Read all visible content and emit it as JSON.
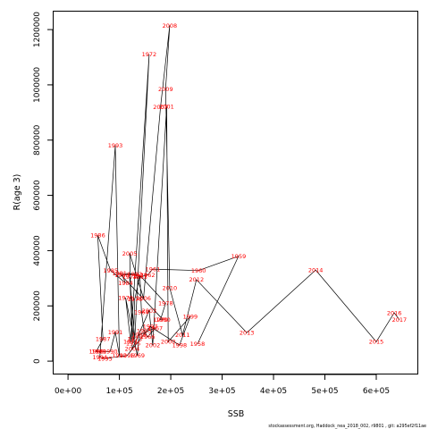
{
  "chart_data": {
    "type": "scatter",
    "xlabel": "SSB",
    "ylabel": "R(age 3)",
    "xlim": [
      -28000,
      680000
    ],
    "ylim": [
      -45000,
      1265000
    ],
    "xticks": [
      0,
      100000,
      200000,
      300000,
      400000,
      500000,
      600000
    ],
    "xtick_labels": [
      "0e+00",
      "1e+05",
      "2e+05",
      "3e+05",
      "4e+05",
      "5e+05",
      "6e+05"
    ],
    "yticks": [
      0,
      200000,
      400000,
      600000,
      800000,
      1000000,
      1200000
    ],
    "ytick_labels": [
      "0",
      "200000",
      "400000",
      "600000",
      "800000",
      "1000000",
      "1200000"
    ],
    "line_color": "#000000",
    "label_color": "#ff0000",
    "points": [
      {
        "year": "1958",
        "x": 252000,
        "y": 62000
      },
      {
        "year": "1959",
        "x": 332000,
        "y": 380000
      },
      {
        "year": "1960",
        "x": 254000,
        "y": 328000
      },
      {
        "year": "1961",
        "x": 165000,
        "y": 333000
      },
      {
        "year": "1962",
        "x": 155000,
        "y": 312000
      },
      {
        "year": "1963",
        "x": 140000,
        "y": 305000
      },
      {
        "year": "1964",
        "x": 143000,
        "y": 178000
      },
      {
        "year": "1965",
        "x": 148000,
        "y": 110000
      },
      {
        "year": "1966",
        "x": 155000,
        "y": 88000
      },
      {
        "year": "1967",
        "x": 170000,
        "y": 120000
      },
      {
        "year": "1968",
        "x": 138000,
        "y": 95000
      },
      {
        "year": "1969",
        "x": 135000,
        "y": 20000
      },
      {
        "year": "1970",
        "x": 112000,
        "y": 230000
      },
      {
        "year": "1971",
        "x": 122000,
        "y": 70000
      },
      {
        "year": "1972",
        "x": 158000,
        "y": 1110000
      },
      {
        "year": "1973",
        "x": 130000,
        "y": 80000
      },
      {
        "year": "1974",
        "x": 120000,
        "y": 305000
      },
      {
        "year": "1975",
        "x": 127000,
        "y": 65000
      },
      {
        "year": "1976",
        "x": 130000,
        "y": 225000
      },
      {
        "year": "1977",
        "x": 140000,
        "y": 310000
      },
      {
        "year": "1978",
        "x": 190000,
        "y": 210000
      },
      {
        "year": "1979",
        "x": 180000,
        "y": 150000
      },
      {
        "year": "1980",
        "x": 185000,
        "y": 150000
      },
      {
        "year": "1981",
        "x": 100000,
        "y": 318000
      },
      {
        "year": "1982",
        "x": 130000,
        "y": 315000
      },
      {
        "year": "1983",
        "x": 105000,
        "y": 312000
      },
      {
        "year": "1984",
        "x": 112000,
        "y": 283000
      },
      {
        "year": "1985",
        "x": 83000,
        "y": 328000
      },
      {
        "year": "1986",
        "x": 58000,
        "y": 455000
      },
      {
        "year": "1987",
        "x": 68000,
        "y": 80000
      },
      {
        "year": "1988",
        "x": 55000,
        "y": 35000
      },
      {
        "year": "1989",
        "x": 60000,
        "y": 35000
      },
      {
        "year": "1990",
        "x": 82000,
        "y": 35000
      },
      {
        "year": "1991",
        "x": 92000,
        "y": 105000
      },
      {
        "year": "1992",
        "x": 100000,
        "y": 20000
      },
      {
        "year": "1993",
        "x": 92000,
        "y": 780000
      },
      {
        "year": "1994",
        "x": 62000,
        "y": 15000
      },
      {
        "year": "1995",
        "x": 72000,
        "y": 10000
      },
      {
        "year": "1996",
        "x": 115000,
        "y": 20000
      },
      {
        "year": "1997",
        "x": 160000,
        "y": 125000
      },
      {
        "year": "1998",
        "x": 217000,
        "y": 58000
      },
      {
        "year": "1999",
        "x": 238000,
        "y": 162000
      },
      {
        "year": "2000",
        "x": 195000,
        "y": 70000
      },
      {
        "year": "2001",
        "x": 192000,
        "y": 922000
      },
      {
        "year": "2002",
        "x": 165000,
        "y": 58000
      },
      {
        "year": "2003",
        "x": 158000,
        "y": 183000
      },
      {
        "year": "2004",
        "x": 125000,
        "y": 45000
      },
      {
        "year": "2005",
        "x": 120000,
        "y": 390000
      },
      {
        "year": "2006",
        "x": 147000,
        "y": 228000
      },
      {
        "year": "2007",
        "x": 180000,
        "y": 920000
      },
      {
        "year": "2008",
        "x": 198000,
        "y": 1215000
      },
      {
        "year": "2009",
        "x": 190000,
        "y": 985000
      },
      {
        "year": "2010",
        "x": 198000,
        "y": 265000
      },
      {
        "year": "2011",
        "x": 223000,
        "y": 95000
      },
      {
        "year": "2012",
        "x": 250000,
        "y": 295000
      },
      {
        "year": "2013",
        "x": 348000,
        "y": 103000
      },
      {
        "year": "2014",
        "x": 482000,
        "y": 330000
      },
      {
        "year": "2015",
        "x": 600000,
        "y": 70000
      },
      {
        "year": "2016",
        "x": 635000,
        "y": 175000
      },
      {
        "year": "2017",
        "x": 645000,
        "y": 150000
      }
    ]
  },
  "footer": "stockassessment.org, Haddock_nea_2018_002, r9801 , git: a295ef2f11ae"
}
